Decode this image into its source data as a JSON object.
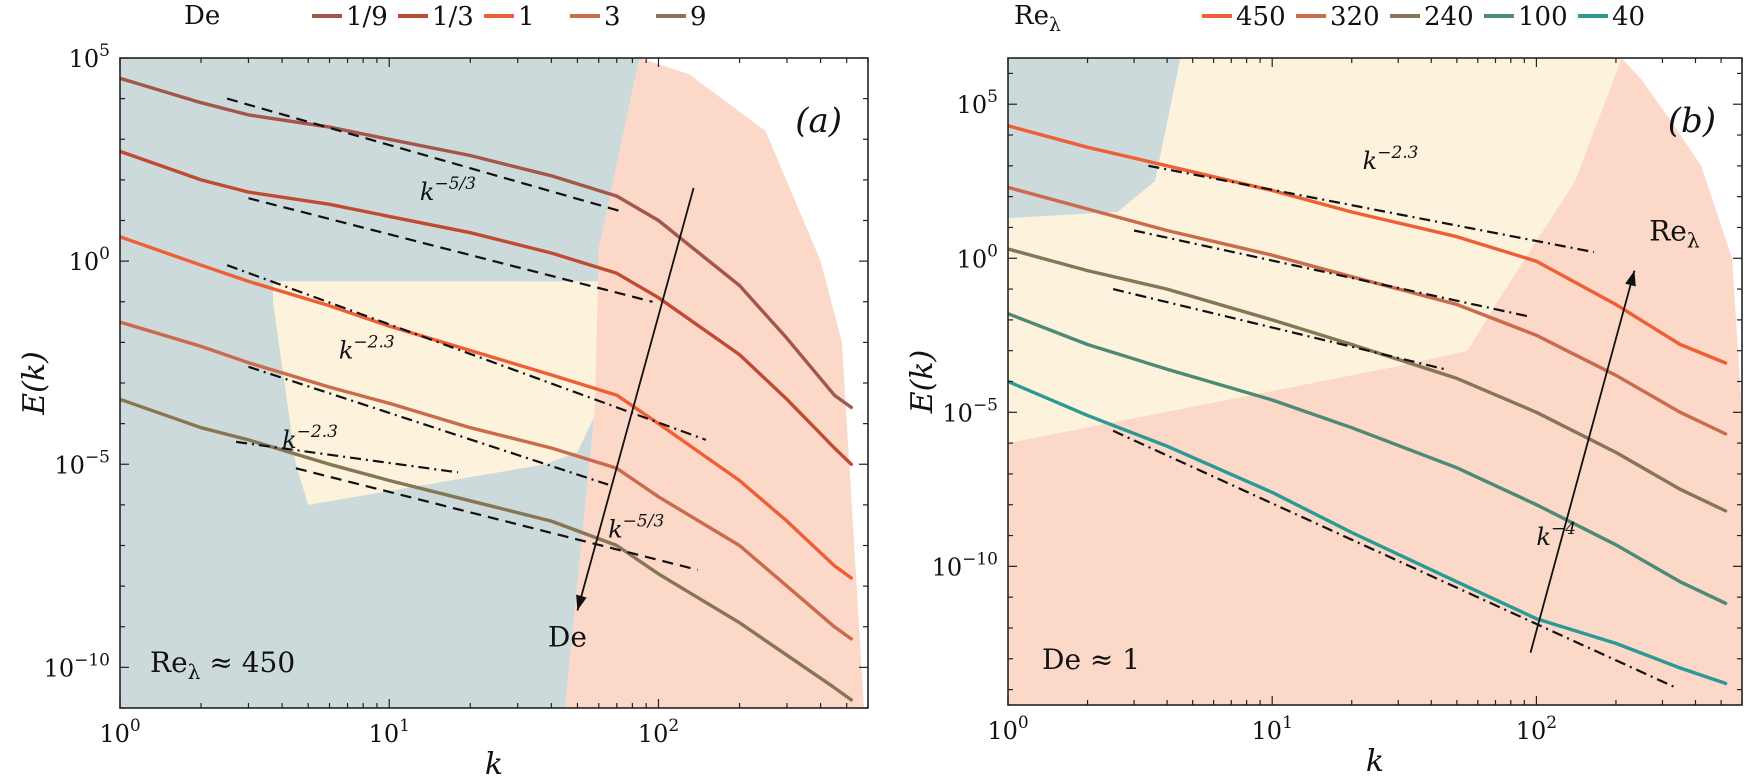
{
  "chart_data": [
    {
      "type": "line",
      "panel_label": "(a)",
      "xlabel": "k",
      "ylabel": "E(k)",
      "xscale": "log",
      "yscale": "log",
      "xlim": [
        1,
        600
      ],
      "ylim_log10": [
        -11,
        5
      ],
      "x_ticks": [
        {
          "v": 1,
          "base": "10",
          "exp": "0"
        },
        {
          "v": 10,
          "base": "10",
          "exp": "1"
        },
        {
          "v": 100,
          "base": "10",
          "exp": "2"
        }
      ],
      "y_ticks": [
        {
          "v": 5,
          "base": "10",
          "exp": "5"
        },
        {
          "v": 0,
          "base": "10",
          "exp": "0"
        },
        {
          "v": -5,
          "base": "10",
          "exp": "−5"
        },
        {
          "v": -10,
          "base": "10",
          "exp": "−10"
        }
      ],
      "legend_title": "De",
      "legend_position": "top",
      "condition": "Reλ ≈ 450",
      "arrow_label": "De",
      "series": [
        {
          "name": "1/9",
          "color": "#a3564a",
          "points": [
            [
              1,
              4.5
            ],
            [
              2,
              3.9
            ],
            [
              3,
              3.6
            ],
            [
              6,
              3.3
            ],
            [
              10,
              3.0
            ],
            [
              20,
              2.6
            ],
            [
              40,
              2.1
            ],
            [
              70,
              1.6
            ],
            [
              100,
              1.0
            ],
            [
              200,
              -0.6
            ],
            [
              300,
              -1.9
            ],
            [
              450,
              -3.3
            ],
            [
              520,
              -3.6
            ]
          ]
        },
        {
          "name": "1/3",
          "color": "#c14a32",
          "points": [
            [
              1,
              2.7
            ],
            [
              2,
              2.0
            ],
            [
              3,
              1.7
            ],
            [
              6,
              1.4
            ],
            [
              10,
              1.1
            ],
            [
              20,
              0.7
            ],
            [
              40,
              0.2
            ],
            [
              70,
              -0.3
            ],
            [
              100,
              -0.9
            ],
            [
              200,
              -2.3
            ],
            [
              300,
              -3.4
            ],
            [
              450,
              -4.6
            ],
            [
              520,
              -5.0
            ]
          ]
        },
        {
          "name": "1",
          "color": "#ee5f35",
          "points": [
            [
              1,
              0.6
            ],
            [
              2,
              -0.1
            ],
            [
              3,
              -0.5
            ],
            [
              6,
              -1.1
            ],
            [
              10,
              -1.6
            ],
            [
              20,
              -2.2
            ],
            [
              40,
              -2.8
            ],
            [
              70,
              -3.3
            ],
            [
              100,
              -4.0
            ],
            [
              200,
              -5.4
            ],
            [
              300,
              -6.4
            ],
            [
              450,
              -7.5
            ],
            [
              520,
              -7.8
            ]
          ]
        },
        {
          "name": "3",
          "color": "#c96b4c",
          "points": [
            [
              1,
              -1.5
            ],
            [
              2,
              -2.1
            ],
            [
              3,
              -2.5
            ],
            [
              6,
              -3.1
            ],
            [
              10,
              -3.5
            ],
            [
              20,
              -4.1
            ],
            [
              40,
              -4.6
            ],
            [
              70,
              -5.1
            ],
            [
              100,
              -5.8
            ],
            [
              200,
              -7.0
            ],
            [
              300,
              -8.0
            ],
            [
              450,
              -9.0
            ],
            [
              520,
              -9.3
            ]
          ]
        },
        {
          "name": "9",
          "color": "#867655",
          "points": [
            [
              1,
              -3.4
            ],
            [
              2,
              -4.1
            ],
            [
              3,
              -4.4
            ],
            [
              6,
              -5.0
            ],
            [
              10,
              -5.4
            ],
            [
              20,
              -5.9
            ],
            [
              40,
              -6.4
            ],
            [
              70,
              -7.0
            ],
            [
              100,
              -7.7
            ],
            [
              200,
              -8.9
            ],
            [
              300,
              -9.7
            ],
            [
              450,
              -10.5
            ],
            [
              520,
              -10.8
            ]
          ]
        }
      ],
      "fits": [
        {
          "style": "dash",
          "points": [
            [
              2.5,
              4.0
            ],
            [
              75,
              1.2
            ]
          ]
        },
        {
          "style": "dash",
          "points": [
            [
              3,
              1.55
            ],
            [
              95,
              -1.0
            ]
          ]
        },
        {
          "style": "dashdot",
          "points": [
            [
              2.5,
              -0.1
            ],
            [
              150,
              -4.4
            ]
          ]
        },
        {
          "style": "dashdot",
          "points": [
            [
              3,
              -2.6
            ],
            [
              65,
              -5.5
            ]
          ]
        },
        {
          "style": "dashdot",
          "points": [
            [
              2.7,
              -4.45
            ],
            [
              18,
              -5.2
            ]
          ]
        },
        {
          "style": "dash",
          "points": [
            [
              4.5,
              -5.1
            ],
            [
              140,
              -7.6
            ]
          ]
        }
      ],
      "annotations": [
        {
          "text": "k",
          "sup": "−5/3",
          "x": 13,
          "y": 1.5
        },
        {
          "text": "k",
          "sup": "−2.3",
          "x": 6.5,
          "y": -2.4
        },
        {
          "text": "k",
          "sup": "−2.3",
          "x": 4,
          "y": -4.6
        },
        {
          "text": "k",
          "sup": "−5/3",
          "x": 65,
          "y": -6.8
        }
      ],
      "regions": [
        {
          "color": "#cddadb",
          "polygon": [
            [
              1,
              5
            ],
            [
              85,
              5
            ],
            [
              60,
              0.3
            ],
            [
              58,
              -3.7
            ],
            [
              45,
              -11
            ],
            [
              1,
              -11
            ]
          ]
        },
        {
          "color": "#fdf3dc",
          "polygon": [
            [
              3.7,
              -0.5
            ],
            [
              60,
              -0.5
            ],
            [
              65,
              -3.1
            ],
            [
              50,
              -4.7
            ],
            [
              38,
              -5
            ],
            [
              5,
              -6
            ],
            [
              4.5,
              -5
            ],
            [
              3.7,
              -1
            ]
          ]
        },
        {
          "color": "#fbd8c8",
          "polygon": [
            [
              85,
              5
            ],
            [
              130,
              4.6
            ],
            [
              250,
              3.2
            ],
            [
              400,
              0
            ],
            [
              480,
              -2
            ],
            [
              580,
              -11
            ],
            [
              45,
              -11
            ],
            [
              58,
              -3.7
            ],
            [
              60,
              0.3
            ]
          ]
        }
      ],
      "arrow": {
        "from": [
          135,
          1.8
        ],
        "to": [
          50,
          -8.6
        ]
      }
    },
    {
      "type": "line",
      "panel_label": "(b)",
      "xlabel": "k",
      "ylabel": "E(k)",
      "xscale": "log",
      "yscale": "log",
      "xlim": [
        1,
        600
      ],
      "ylim_log10": [
        -14.5,
        6.5
      ],
      "x_ticks": [
        {
          "v": 1,
          "base": "10",
          "exp": "0"
        },
        {
          "v": 10,
          "base": "10",
          "exp": "1"
        },
        {
          "v": 100,
          "base": "10",
          "exp": "2"
        }
      ],
      "y_ticks": [
        {
          "v": 5,
          "base": "10",
          "exp": "5"
        },
        {
          "v": 0,
          "base": "10",
          "exp": "0"
        },
        {
          "v": -5,
          "base": "10",
          "exp": "−5"
        },
        {
          "v": -10,
          "base": "10",
          "exp": "−10"
        }
      ],
      "legend_title": "Reλ",
      "legend_position": "top",
      "condition": "De ≈ 1",
      "arrow_label": "Reλ",
      "series": [
        {
          "name": "450",
          "color": "#ee5f35",
          "points": [
            [
              1,
              4.3
            ],
            [
              2,
              3.6
            ],
            [
              4,
              3.0
            ],
            [
              10,
              2.2
            ],
            [
              20,
              1.5
            ],
            [
              50,
              0.7
            ],
            [
              100,
              -0.1
            ],
            [
              200,
              -1.5
            ],
            [
              350,
              -2.8
            ],
            [
              520,
              -3.4
            ]
          ]
        },
        {
          "name": "320",
          "color": "#c96b4c",
          "points": [
            [
              1,
              2.3
            ],
            [
              2,
              1.6
            ],
            [
              4,
              0.9
            ],
            [
              10,
              0.1
            ],
            [
              20,
              -0.6
            ],
            [
              50,
              -1.5
            ],
            [
              100,
              -2.5
            ],
            [
              200,
              -3.8
            ],
            [
              350,
              -5.0
            ],
            [
              520,
              -5.7
            ]
          ]
        },
        {
          "name": "240",
          "color": "#867655",
          "points": [
            [
              1,
              0.3
            ],
            [
              2,
              -0.4
            ],
            [
              4,
              -1.0
            ],
            [
              10,
              -2.0
            ],
            [
              20,
              -2.8
            ],
            [
              50,
              -3.9
            ],
            [
              100,
              -5.0
            ],
            [
              200,
              -6.3
            ],
            [
              350,
              -7.5
            ],
            [
              520,
              -8.2
            ]
          ]
        },
        {
          "name": "100",
          "color": "#4c8a75",
          "points": [
            [
              1,
              -1.8
            ],
            [
              2,
              -2.8
            ],
            [
              4,
              -3.6
            ],
            [
              10,
              -4.6
            ],
            [
              20,
              -5.5
            ],
            [
              50,
              -6.8
            ],
            [
              100,
              -8.0
            ],
            [
              200,
              -9.3
            ],
            [
              350,
              -10.5
            ],
            [
              520,
              -11.2
            ]
          ]
        },
        {
          "name": "40",
          "color": "#2b9a94",
          "points": [
            [
              1,
              -4.0
            ],
            [
              2,
              -5.1
            ],
            [
              4,
              -6.1
            ],
            [
              10,
              -7.6
            ],
            [
              20,
              -8.9
            ],
            [
              50,
              -10.5
            ],
            [
              100,
              -11.7
            ],
            [
              200,
              -12.5
            ],
            [
              350,
              -13.3
            ],
            [
              520,
              -13.8
            ]
          ]
        }
      ],
      "fits": [
        {
          "style": "dashdot",
          "points": [
            [
              3.4,
              3.0
            ],
            [
              165,
              0.2
            ]
          ]
        },
        {
          "style": "dashdot",
          "points": [
            [
              3,
              0.9
            ],
            [
              95,
              -1.9
            ]
          ]
        },
        {
          "style": "dashdot",
          "points": [
            [
              2.5,
              -1.0
            ],
            [
              45,
              -3.6
            ]
          ]
        },
        {
          "style": "dashdot",
          "points": [
            [
              2.5,
              -5.6
            ],
            [
              330,
              -13.9
            ]
          ]
        }
      ],
      "annotations": [
        {
          "text": "k",
          "sup": "−2.3",
          "x": 22,
          "y": 2.9
        },
        {
          "text": "k",
          "sup": "−4",
          "x": 100,
          "y": -9.3
        }
      ],
      "regions": [
        {
          "color": "#cddadb",
          "polygon": [
            [
              1,
              6.5
            ],
            [
              4.5,
              6.5
            ],
            [
              3.6,
              2.5
            ],
            [
              2.6,
              1.5
            ],
            [
              1,
              1.3
            ]
          ]
        },
        {
          "color": "#fdf3dc",
          "polygon": [
            [
              4.5,
              6.5
            ],
            [
              210,
              6.5
            ],
            [
              140,
              2.5
            ],
            [
              70,
              -1.5
            ],
            [
              55,
              -3
            ],
            [
              30,
              -3.5
            ],
            [
              1,
              -6
            ],
            [
              1,
              1.3
            ],
            [
              2.6,
              1.5
            ],
            [
              3.6,
              2.5
            ]
          ]
        },
        {
          "color": "#fbd8c8",
          "polygon": [
            [
              210,
              6.5
            ],
            [
              250,
              5.8
            ],
            [
              320,
              4.5
            ],
            [
              420,
              3.0
            ],
            [
              550,
              0
            ],
            [
              600,
              -5
            ],
            [
              600,
              -14.5
            ],
            [
              1,
              -14.5
            ],
            [
              1,
              -6
            ],
            [
              30,
              -3.5
            ],
            [
              55,
              -3
            ],
            [
              70,
              -1.5
            ],
            [
              140,
              2.5
            ]
          ]
        }
      ],
      "arrow": {
        "from": [
          95,
          -12.8
        ],
        "to": [
          235,
          -0.4
        ]
      }
    }
  ]
}
